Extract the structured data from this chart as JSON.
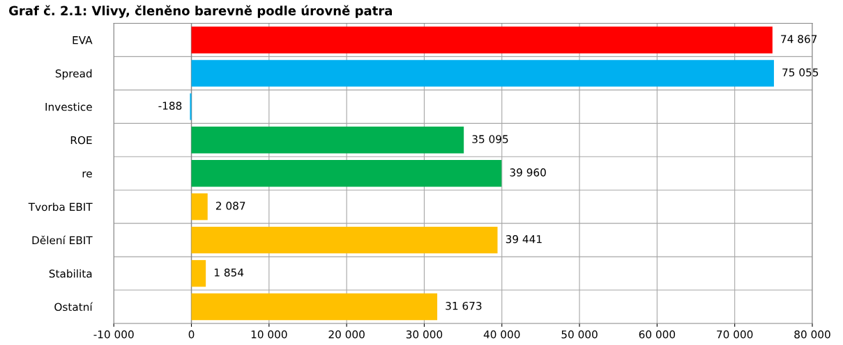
{
  "chart_data": {
    "type": "bar",
    "orientation": "horizontal",
    "title": "Graf č. 2.1: Vlivy, členěno barevně podle úrovně patra",
    "categories": [
      "EVA",
      "Spread",
      "Investice",
      "ROE",
      "re",
      "Tvorba EBIT",
      "Dělení EBIT",
      "Stabilita",
      "Ostatní"
    ],
    "values": [
      74867,
      75055,
      -188,
      35095,
      39960,
      2087,
      39441,
      1854,
      31673
    ],
    "value_labels": [
      "74 867",
      "75 055",
      "-188",
      "35 095",
      "39 960",
      "2 087",
      "39 441",
      "1 854",
      "31 673"
    ],
    "colors": [
      "#ff0000",
      "#00b0f0",
      "#00b0f0",
      "#00b050",
      "#00b050",
      "#ffc000",
      "#ffc000",
      "#ffc000",
      "#ffc000"
    ],
    "xlim": [
      -10000,
      80000
    ],
    "xticks": [
      {
        "value": -10000,
        "label": "-10 000"
      },
      0,
      {
        "value": 10000,
        "label": "10 000"
      },
      {
        "value": 20000,
        "label": "20 000"
      },
      {
        "value": 30000,
        "label": "30 000"
      },
      {
        "value": 40000,
        "label": "40 000"
      },
      {
        "value": 50000,
        "label": "50 000"
      },
      {
        "value": 60000,
        "label": "60 000"
      },
      {
        "value": 70000,
        "label": "70 000"
      },
      {
        "value": 80000,
        "label": "80 000"
      }
    ],
    "grid": true,
    "legend": false
  }
}
